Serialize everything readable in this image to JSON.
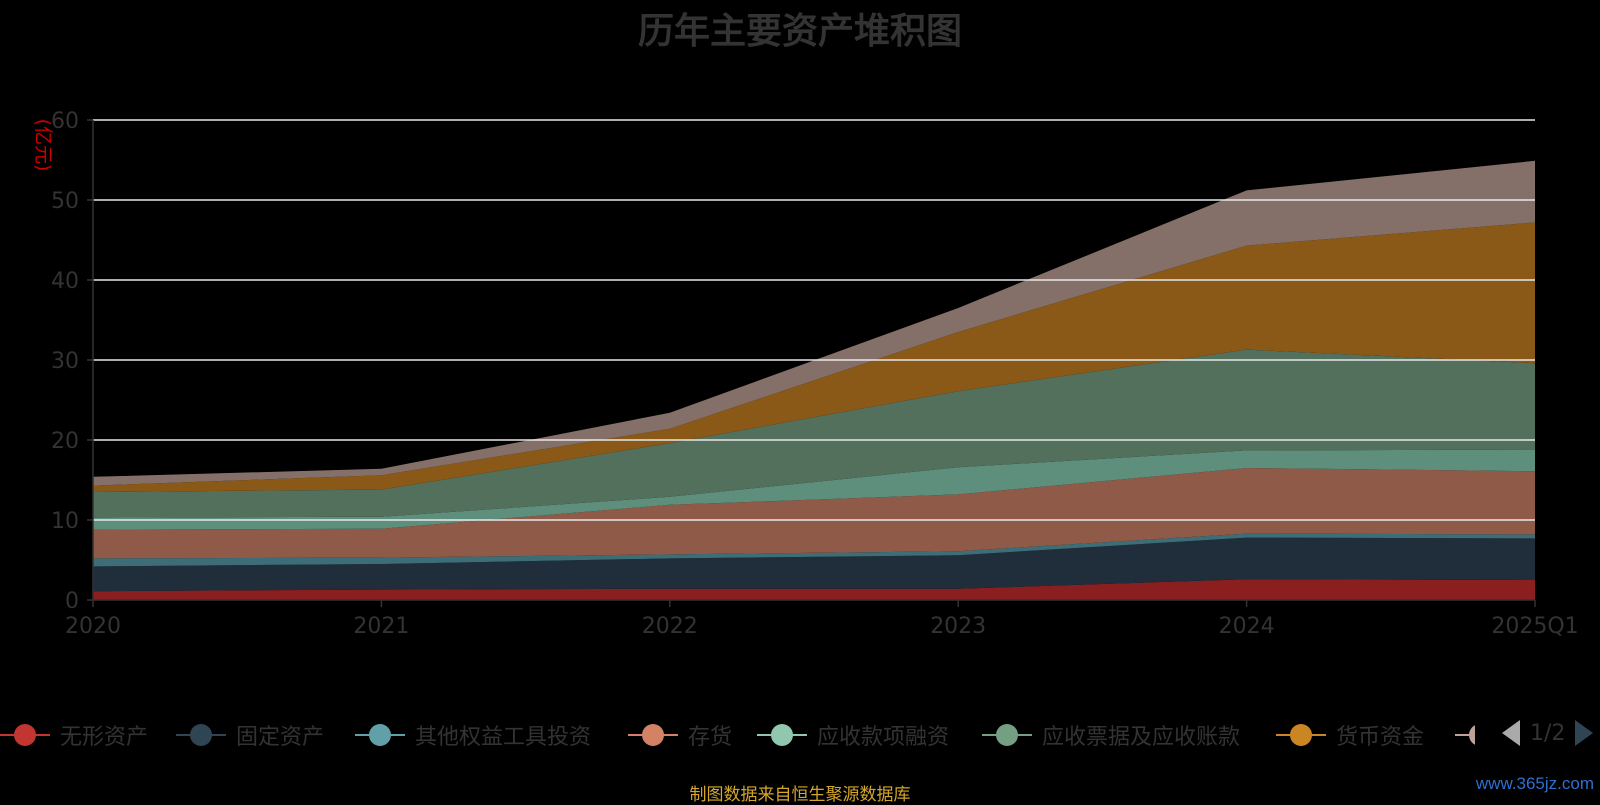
{
  "chart_data": {
    "type": "area",
    "stacked": true,
    "title": "历年主要资产堆积图",
    "unit_label": "(亿元)",
    "categories": [
      "2020",
      "2021",
      "2022",
      "2023",
      "2024",
      "2025Q1"
    ],
    "y_ticks": [
      "0",
      "10",
      "20",
      "30",
      "40",
      "50",
      "60"
    ],
    "ylim": [
      0,
      60
    ],
    "grid": true,
    "series": [
      {
        "name": "无形资产",
        "color": "#8b1f1f",
        "legend_color": "#c23531",
        "values": [
          1.1,
          1.3,
          1.4,
          1.4,
          2.6,
          2.5
        ]
      },
      {
        "name": "固定资产",
        "color": "#1f2e3a",
        "legend_color": "#2f4554",
        "values": [
          3.1,
          3.2,
          3.8,
          4.2,
          5.2,
          5.2
        ]
      },
      {
        "name": "其他权益工具投资",
        "color": "#3d6e78",
        "legend_color": "#61a0a8",
        "values": [
          1.0,
          0.8,
          0.5,
          0.5,
          0.5,
          0.5
        ]
      },
      {
        "name": "存货",
        "color": "#8f5a48",
        "legend_color": "#d48265",
        "values": [
          3.6,
          3.6,
          6.2,
          7.1,
          8.2,
          7.9
        ]
      },
      {
        "name": "应收款项融资",
        "color": "#5e8e7c",
        "legend_color": "#91c7ae",
        "values": [
          1.5,
          1.5,
          1.0,
          3.4,
          2.2,
          2.7
        ]
      },
      {
        "name": "应收票据及应收账款",
        "color": "#52705c",
        "legend_color": "#749f83",
        "values": [
          3.2,
          3.4,
          6.7,
          9.5,
          12.6,
          10.8
        ]
      },
      {
        "name": "货币资金",
        "color": "#8a5817",
        "legend_color": "#ca8622",
        "values": [
          0.8,
          1.8,
          1.8,
          7.4,
          13.0,
          17.6
        ]
      },
      {
        "name": "",
        "color": "#847068",
        "legend_color": "#bda29a",
        "values": [
          1.1,
          0.8,
          2.0,
          3.0,
          6.9,
          7.7
        ]
      }
    ]
  },
  "legend": {
    "items": [
      {
        "label": "无形资产",
        "color": "#c23531"
      },
      {
        "label": "固定资产",
        "color": "#2f4554"
      },
      {
        "label": "其他权益工具投资",
        "color": "#61a0a8"
      },
      {
        "label": "存货",
        "color": "#d48265"
      },
      {
        "label": "应收款项融资",
        "color": "#91c7ae"
      },
      {
        "label": "应收票据及应收账款",
        "color": "#749f83"
      },
      {
        "label": "货币资金",
        "color": "#ca8622"
      },
      {
        "label": "",
        "color": "#bda29a"
      }
    ],
    "page_text": "1/2"
  },
  "source_note": "制图数据来自恒生聚源数据库",
  "watermark": "www.365jz.com",
  "colors": {
    "grid": "#e8e8e8",
    "axis_text": "#333333",
    "unit_label": "#cc0000",
    "pager_active": "#2f4554",
    "pager_inactive": "#aaaaaa"
  }
}
